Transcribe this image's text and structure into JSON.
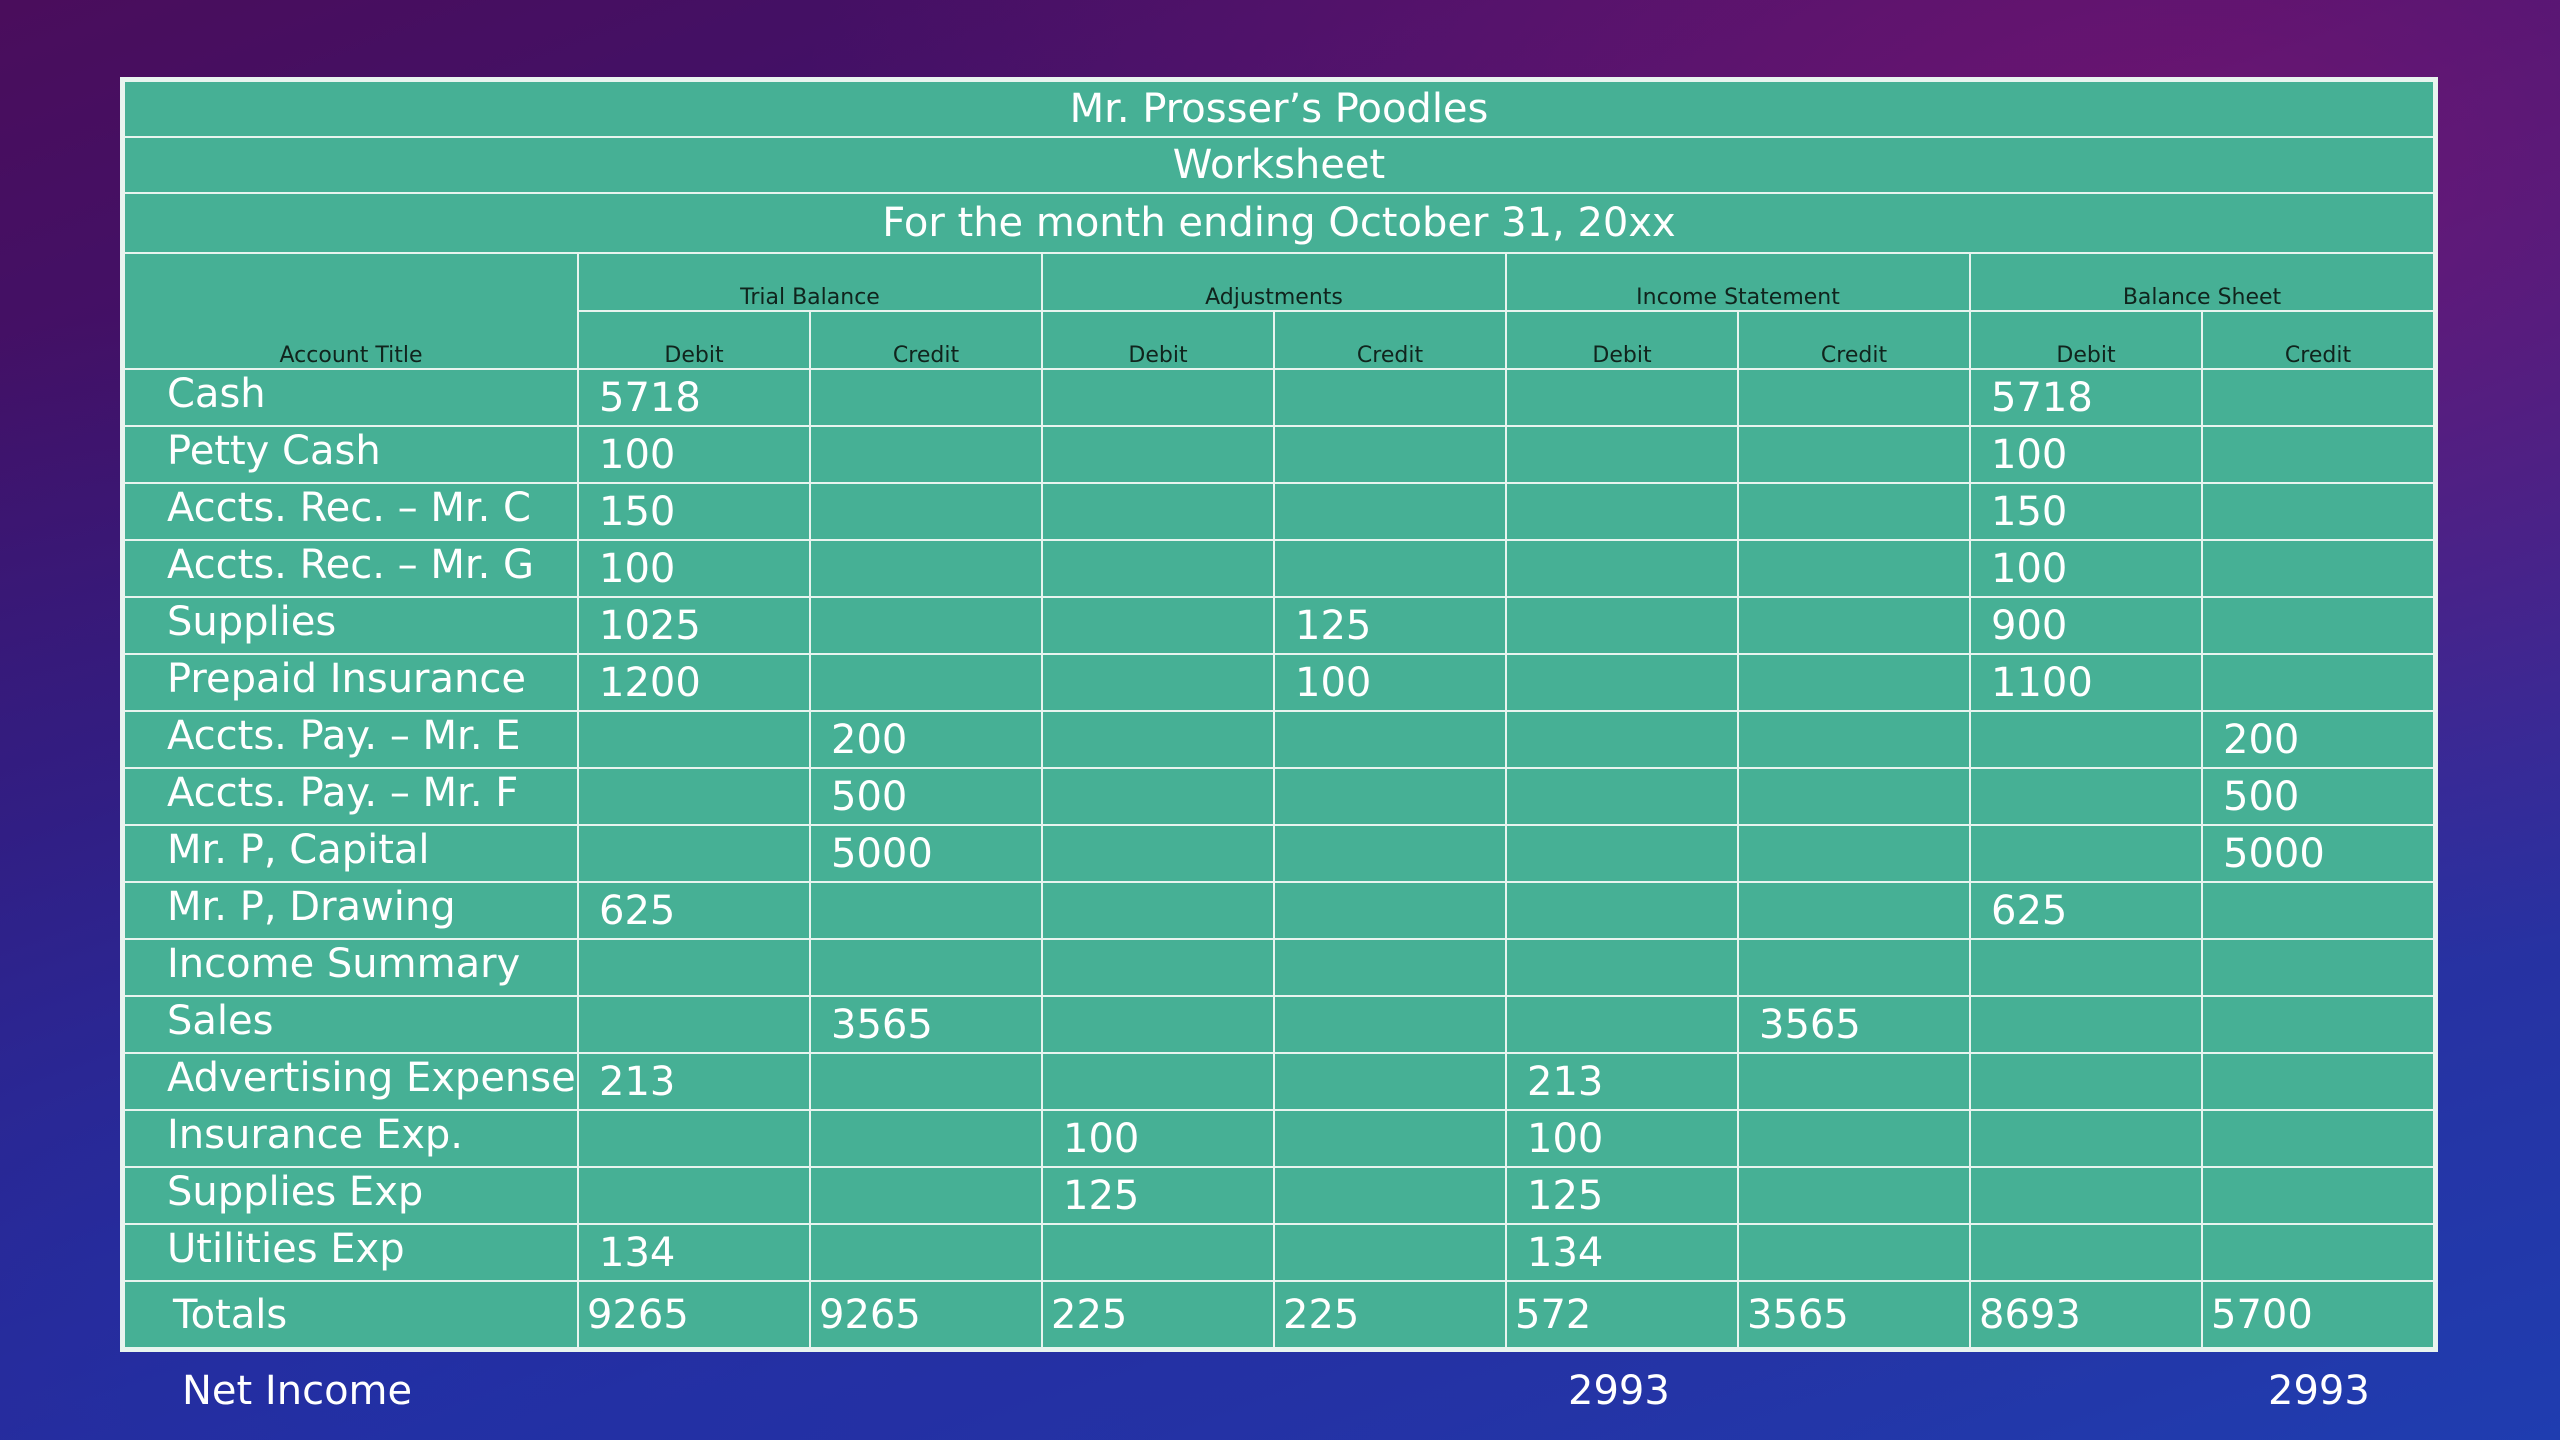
{
  "header": {
    "company": "Mr. Prosser’s Poodles",
    "document": "Worksheet",
    "period": "For the month ending October 31, 20xx"
  },
  "columns": {
    "account_title": "Account Title",
    "groups": [
      "Trial Balance",
      "Adjustments",
      "Income Statement",
      "Balance Sheet"
    ],
    "debit": "Debit",
    "credit": "Credit"
  },
  "rows": [
    {
      "account": "Cash",
      "values": [
        "5718",
        "",
        "",
        "",
        "",
        "",
        "5718",
        ""
      ]
    },
    {
      "account": "Petty Cash",
      "values": [
        "100",
        "",
        "",
        "",
        "",
        "",
        "100",
        ""
      ]
    },
    {
      "account": "Accts. Rec. – Mr. C",
      "values": [
        "150",
        "",
        "",
        "",
        "",
        "",
        "150",
        ""
      ]
    },
    {
      "account": "Accts. Rec. – Mr. G",
      "values": [
        "100",
        "",
        "",
        "",
        "",
        "",
        "100",
        ""
      ]
    },
    {
      "account": "Supplies",
      "values": [
        "1025",
        "",
        "",
        "125",
        "",
        "",
        "900",
        ""
      ]
    },
    {
      "account": "Prepaid Insurance",
      "values": [
        "1200",
        "",
        "",
        "100",
        "",
        "",
        "1100",
        ""
      ]
    },
    {
      "account": "Accts. Pay. – Mr. E",
      "values": [
        "",
        "200",
        "",
        "",
        "",
        "",
        "",
        "200"
      ]
    },
    {
      "account": "Accts. Pay. – Mr. F",
      "values": [
        "",
        "500",
        "",
        "",
        "",
        "",
        "",
        "500"
      ]
    },
    {
      "account": "Mr. P, Capital",
      "values": [
        "",
        "5000",
        "",
        "",
        "",
        "",
        "",
        "5000"
      ]
    },
    {
      "account": "Mr. P, Drawing",
      "values": [
        "625",
        "",
        "",
        "",
        "",
        "",
        "625",
        ""
      ]
    },
    {
      "account": "Income Summary",
      "values": [
        "",
        "",
        "",
        "",
        "",
        "",
        "",
        ""
      ]
    },
    {
      "account": "Sales",
      "values": [
        "",
        "3565",
        "",
        "",
        "",
        "3565",
        "",
        ""
      ]
    },
    {
      "account": "Advertising Expense",
      "values": [
        "213",
        "",
        "",
        "",
        "213",
        "",
        "",
        ""
      ]
    },
    {
      "account": "Insurance Exp.",
      "values": [
        "",
        "",
        "100",
        "",
        "100",
        "",
        "",
        ""
      ]
    },
    {
      "account": "Supplies  Exp",
      "values": [
        "",
        "",
        "125",
        "",
        "125",
        "",
        "",
        ""
      ]
    },
    {
      "account": "Utilities Exp",
      "values": [
        "134",
        "",
        "",
        "",
        "134",
        "",
        "",
        ""
      ]
    }
  ],
  "totals": {
    "label": "Totals",
    "values": [
      "9265",
      "9265",
      "225",
      "225",
      "572",
      "3565",
      "8693",
      "5700"
    ]
  },
  "net_income": {
    "label": "Net Income",
    "income_statement": "2993",
    "balance_sheet": "2993"
  }
}
